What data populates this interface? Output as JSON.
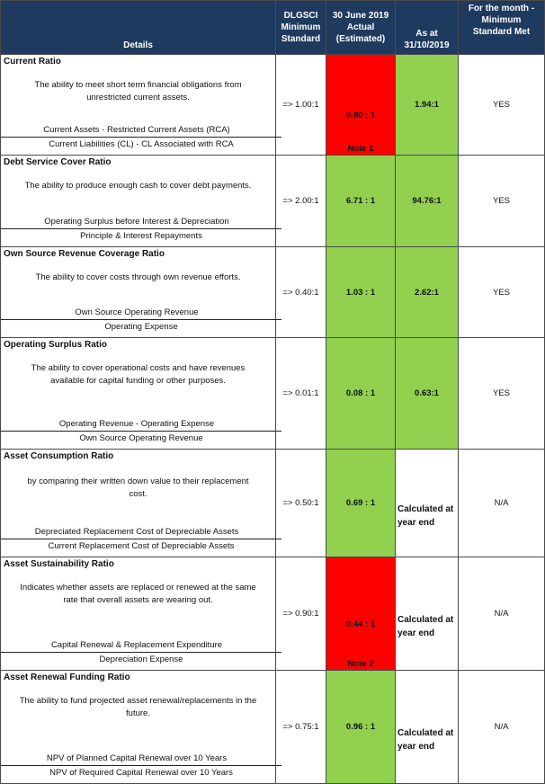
{
  "header": {
    "details": "Details",
    "standard": [
      "DLGSCI",
      "Minimum",
      "Standard"
    ],
    "actual": [
      "30 June 2019",
      "Actual",
      "(Estimated)"
    ],
    "asat": [
      "As at",
      "31/10/2019"
    ],
    "met": [
      "For the month -",
      "Minimum",
      "Standard Met"
    ]
  },
  "rows": [
    {
      "title": "Current Ratio",
      "description": [
        "The ability to meet short term financial obligations from",
        "unrestricted current assets."
      ],
      "numerator": "Current Assets - Restricted Current Assets (RCA)",
      "denominator": "Current Liabilities (CL) - CL Associated with RCA",
      "standard": "=> 1.00:1",
      "actual": "0.80 : 1",
      "actual_status": "red",
      "note": "Note 1",
      "asat": "1.94:1",
      "asat_status": "green",
      "met": "YES"
    },
    {
      "title": "Debt Service Cover Ratio",
      "description": [
        "The ability to produce enough cash to cover debt payments."
      ],
      "numerator": "Operating Surplus before Interest & Depreciation",
      "denominator": "Principle & Interest Repayments",
      "standard": "=> 2.00:1",
      "actual": "6.71 : 1",
      "actual_status": "green",
      "note": "",
      "asat": "94.76:1",
      "asat_status": "green",
      "met": "YES"
    },
    {
      "title": "Own Source Revenue Coverage Ratio",
      "description": [
        "The ability to cover costs through own revenue efforts."
      ],
      "numerator": "Own Source Operating Revenue",
      "denominator": "Operating Expense",
      "standard": "=> 0.40:1",
      "actual": "1.03 : 1",
      "actual_status": "green",
      "note": "",
      "asat": "2.62:1",
      "asat_status": "green",
      "met": "YES"
    },
    {
      "title": "Operating Surplus Ratio",
      "description": [
        "The ability to cover operational costs and have revenues",
        "available for capital funding or other purposes."
      ],
      "numerator": "Operating Revenue - Operating Expense",
      "denominator": "Own Source Operating Revenue",
      "standard": "=> 0.01:1",
      "actual": "0.08 : 1",
      "actual_status": "green",
      "note": "",
      "asat": "0.63:1",
      "asat_status": "green",
      "met": "YES"
    },
    {
      "title": "Asset Consumption Ratio",
      "description": [
        "by comparing their written down value to their replacement",
        "cost."
      ],
      "numerator": "Depreciated Replacement Cost of Depreciable Assets",
      "denominator": "Current Replacement Cost of Depreciable Assets",
      "standard": "=> 0.50:1",
      "actual": "0.69 : 1",
      "actual_status": "green",
      "note": "",
      "asat": "Calculated at year end",
      "asat_status": "plain",
      "met": "N/A"
    },
    {
      "title": "Asset Sustainability Ratio",
      "description": [
        "Indicates whether assets are replaced or renewed at the same",
        "rate that overall assets are wearing out."
      ],
      "numerator": "Capital Renewal & Replacement Expenditure",
      "denominator": "Depreciation Expense",
      "standard": "=> 0.90:1",
      "actual": "0.44 : 1",
      "actual_status": "red",
      "note": "Note 2",
      "asat": "Calculated at year end",
      "asat_status": "plain",
      "met": "N/A"
    },
    {
      "title": "Asset Renewal Funding Ratio",
      "description": [
        "The ability to fund projected asset renewal/replacements in the",
        "future."
      ],
      "numerator": "NPV of Planned Capital Renewal over 10 Years",
      "denominator": "NPV of Required Capital Renewal over 10 Years",
      "standard": "=> 0.75:1",
      "actual": "0.96 : 1",
      "actual_status": "green",
      "note": "",
      "asat": "Calculated at year end",
      "asat_status": "plain",
      "met": "N/A"
    }
  ],
  "colors": {
    "header_bg": "#1f3a5f",
    "green": "#92d050",
    "red": "#ff0000"
  }
}
